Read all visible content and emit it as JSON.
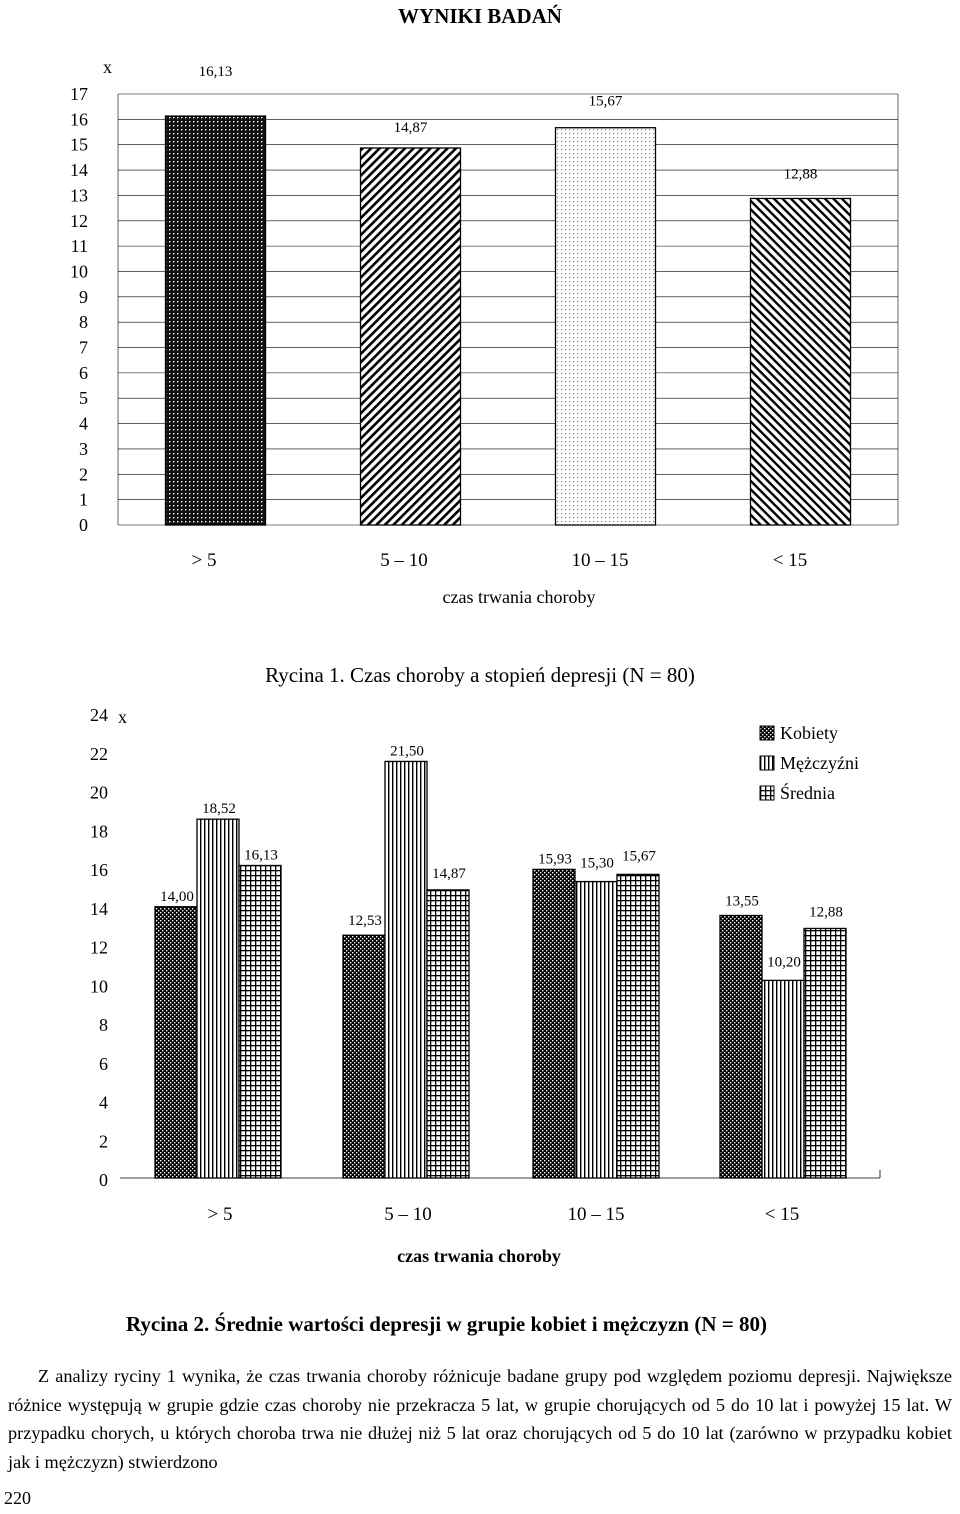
{
  "page_header": {
    "title": "WYNIKI BADAŃ"
  },
  "chart_data": [
    {
      "type": "bar",
      "caption": "Rycina 1. Czas choroby a stopień depresji (N = 80)",
      "axis_marker": "x",
      "categories": [
        "> 5",
        "5 – 10",
        "10 – 15",
        "< 15"
      ],
      "values": [
        16.13,
        14.87,
        15.67,
        12.88
      ],
      "data_labels": [
        "16,13",
        "14,87",
        "15,67",
        "12,88"
      ],
      "xlabel": "czas trwania choroby",
      "ylabel": "",
      "ylim": [
        0,
        17
      ],
      "yticks": [
        0,
        1,
        2,
        3,
        4,
        5,
        6,
        7,
        8,
        9,
        10,
        11,
        12,
        13,
        14,
        15,
        16,
        17
      ],
      "grid": true,
      "patterns": [
        "dots-dark",
        "hatch-back",
        "dots-light",
        "hatch-forward"
      ]
    },
    {
      "type": "bar",
      "caption": "Rycina 2. Średnie wartości depresji w grupie kobiet i mężczyzn (N = 80)",
      "axis_marker": "x",
      "categories": [
        "> 5",
        "5 – 10",
        "10 – 15",
        "< 15"
      ],
      "series": [
        {
          "name": "Kobiety",
          "values": [
            14.0,
            12.53,
            15.93,
            13.55
          ],
          "data_labels": [
            "14,00",
            "12,53",
            "15,93",
            "13,55"
          ],
          "pattern": "checker-dark"
        },
        {
          "name": "Mężczyźni",
          "values": [
            18.52,
            21.5,
            15.3,
            10.2
          ],
          "data_labels": [
            "18,52",
            "21,50",
            "15,30",
            "10,20"
          ],
          "pattern": "vertical-lines"
        },
        {
          "name": "Średnia",
          "values": [
            16.13,
            14.87,
            15.67,
            12.88
          ],
          "data_labels": [
            "16,13",
            "14,87",
            "15,67",
            "12,88"
          ],
          "pattern": "grid"
        }
      ],
      "xlabel": "czas trwania choroby",
      "ylabel": "",
      "ylim": [
        0,
        24
      ],
      "yticks": [
        0,
        2,
        4,
        6,
        8,
        10,
        12,
        14,
        16,
        18,
        20,
        22,
        24
      ],
      "grid": false,
      "legend": "top-right"
    }
  ],
  "captions": {
    "fig1": "Rycina 1. Czas choroby a stopień depresji (N = 80)",
    "fig2": "Rycina 2. Średnie wartości depresji w grupie kobiet i mężczyzn (N = 80)"
  },
  "body_text": "Z analizy ryciny 1 wynika, że czas trwania choroby różnicuje badane grupy pod względem poziomu depresji. Największe różnice występują w grupie gdzie czas choroby nie przekracza 5 lat, w grupie chorujących od 5 do 10 lat i powyżej 15 lat. W przypadku chorych, u których choroba trwa nie dłużej niż 5 lat oraz chorujących od 5 do 10 lat (zarówno w przypadku kobiet jak i mężczyzn) stwierdzono",
  "page_number": "220"
}
